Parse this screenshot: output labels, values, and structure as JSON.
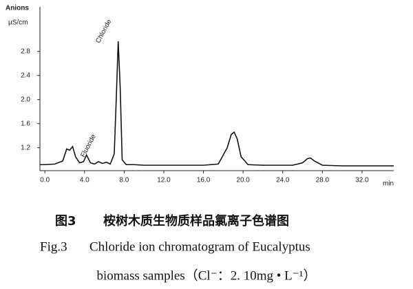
{
  "chart_data": {
    "type": "line",
    "y_label": "Anions",
    "y_unit": "µS/cm",
    "x_unit": "min",
    "annotations": [
      "Chloride",
      "Fluoride"
    ],
    "x": [
      -0.5,
      0,
      1,
      1.8,
      2.2,
      2.5,
      2.8,
      3.1,
      3.5,
      3.9,
      4.2,
      4.6,
      5,
      5.4,
      5.8,
      6.2,
      6.6,
      7.0,
      7.2,
      7.4,
      7.6,
      7.8,
      8.2,
      9,
      10,
      12,
      16,
      17.5,
      18.4,
      18.8,
      19.1,
      19.4,
      19.8,
      20.5,
      22,
      25,
      26,
      26.5,
      26.8,
      27.2,
      28,
      30,
      34,
      35.2
    ],
    "series": [
      {
        "color": "#111111",
        "values": [
          0.92,
          0.92,
          0.93,
          0.98,
          1.18,
          1.16,
          1.22,
          1.05,
          0.95,
          0.97,
          1.08,
          0.95,
          0.93,
          0.97,
          0.94,
          0.96,
          0.93,
          1.1,
          2.0,
          2.97,
          2.2,
          1.0,
          0.92,
          0.92,
          0.91,
          0.91,
          0.91,
          0.93,
          1.2,
          1.42,
          1.46,
          1.35,
          1.05,
          0.92,
          0.91,
          0.91,
          0.95,
          1.02,
          1.03,
          0.98,
          0.91,
          0.9,
          0.9,
          0.9
        ]
      }
    ],
    "xlim": [
      -0.5,
      35.2
    ],
    "ylim": [
      0.82,
      3.54
    ],
    "xticks": [
      {
        "value": 0,
        "label": "0.0"
      },
      {
        "value": 4,
        "label": "4.0"
      },
      {
        "value": 8,
        "label": "8.0"
      },
      {
        "value": 12,
        "label": "12.0"
      },
      {
        "value": 16,
        "label": "16.0"
      },
      {
        "value": 20,
        "label": "20.0"
      },
      {
        "value": 24,
        "label": "24.0"
      },
      {
        "value": 28,
        "label": "28.0"
      },
      {
        "value": 32,
        "label": "32.0"
      }
    ],
    "yticks": [
      1.2,
      1.6,
      {
        "value": 2,
        "label": "2.0"
      },
      2.4,
      2.8
    ],
    "grid": false
  },
  "caption": {
    "label_zh": "图3",
    "title_zh": "桉树木质生物质样品氯离子色谱图",
    "label_en": "Fig.3",
    "line1_en": "Chloride ion chromatogram of Eucalyptus",
    "line2_en": "biomass samples（Cl⁻：2. 10mg • L⁻¹）"
  }
}
